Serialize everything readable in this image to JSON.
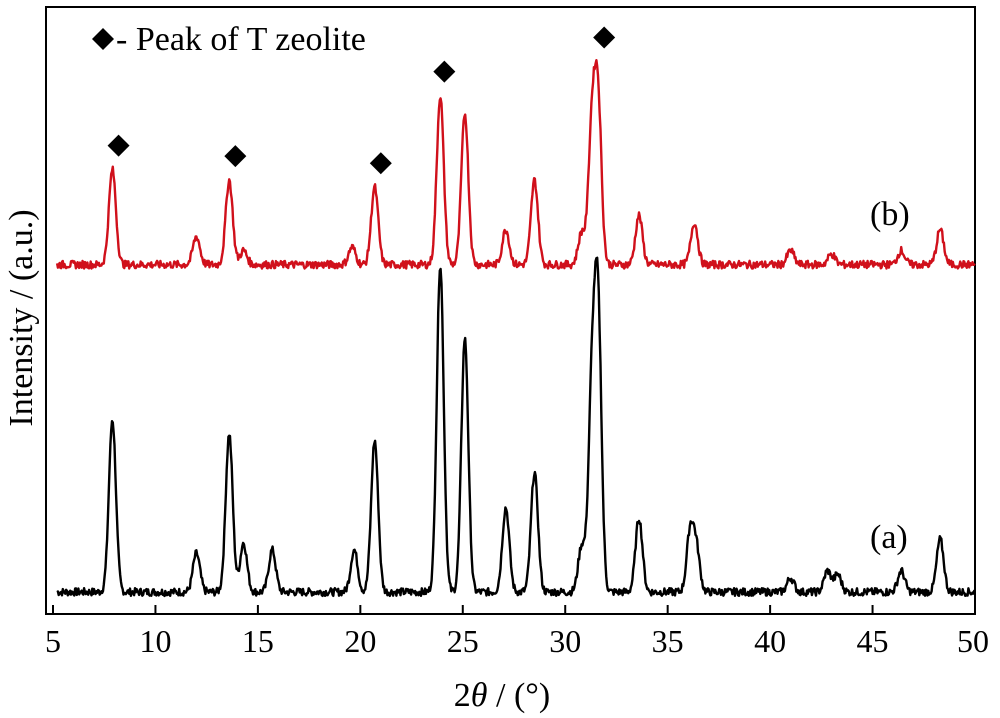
{
  "chart_data": {
    "type": "line",
    "xlabel": {
      "prefix": "2",
      "italic": "θ",
      "suffix": " / (°)"
    },
    "ylabel": "Intensity / (a.u.)",
    "xlim": [
      5,
      50
    ],
    "xticks": [
      5,
      10,
      15,
      20,
      25,
      30,
      35,
      40,
      45,
      50
    ],
    "yticks_shown": false,
    "legend": {
      "text": "- Peak of T zeolite",
      "marker": "diamond",
      "position": "top-left"
    },
    "series": [
      {
        "name": "(a)",
        "color": "#000000",
        "baseline": 0.0,
        "peaks": [
          [
            7.9,
            0.49
          ],
          [
            12.0,
            0.11
          ],
          [
            13.6,
            0.45
          ],
          [
            14.3,
            0.14
          ],
          [
            15.7,
            0.12
          ],
          [
            19.7,
            0.12
          ],
          [
            20.7,
            0.43
          ],
          [
            23.9,
            0.93
          ],
          [
            25.1,
            0.72
          ],
          [
            27.1,
            0.24
          ],
          [
            28.5,
            0.34
          ],
          [
            30.8,
            0.13
          ],
          [
            31.3,
            0.55
          ],
          [
            31.6,
            0.79
          ],
          [
            33.6,
            0.21
          ],
          [
            36.1,
            0.17
          ],
          [
            36.4,
            0.12
          ],
          [
            41.0,
            0.04
          ],
          [
            42.8,
            0.06
          ],
          [
            43.3,
            0.05
          ],
          [
            46.4,
            0.06
          ],
          [
            48.3,
            0.15
          ]
        ]
      },
      {
        "name": "(b)",
        "color": "#d0101b",
        "baseline": 0.93,
        "peaks": [
          [
            7.9,
            0.27
          ],
          [
            12.0,
            0.08
          ],
          [
            13.6,
            0.24
          ],
          [
            14.3,
            0.04
          ],
          [
            19.6,
            0.05
          ],
          [
            20.7,
            0.22
          ],
          [
            23.9,
            0.48
          ],
          [
            25.1,
            0.43
          ],
          [
            27.1,
            0.1
          ],
          [
            28.5,
            0.24
          ],
          [
            30.8,
            0.09
          ],
          [
            31.3,
            0.38
          ],
          [
            31.6,
            0.46
          ],
          [
            33.6,
            0.14
          ],
          [
            36.3,
            0.12
          ],
          [
            41.0,
            0.04
          ],
          [
            43.0,
            0.03
          ],
          [
            46.4,
            0.04
          ],
          [
            48.3,
            0.1
          ]
        ]
      }
    ],
    "series_labels": [
      "(a)",
      "(b)"
    ],
    "marker_x": [
      8.2,
      13.9,
      21.0,
      24.1,
      31.9
    ]
  }
}
